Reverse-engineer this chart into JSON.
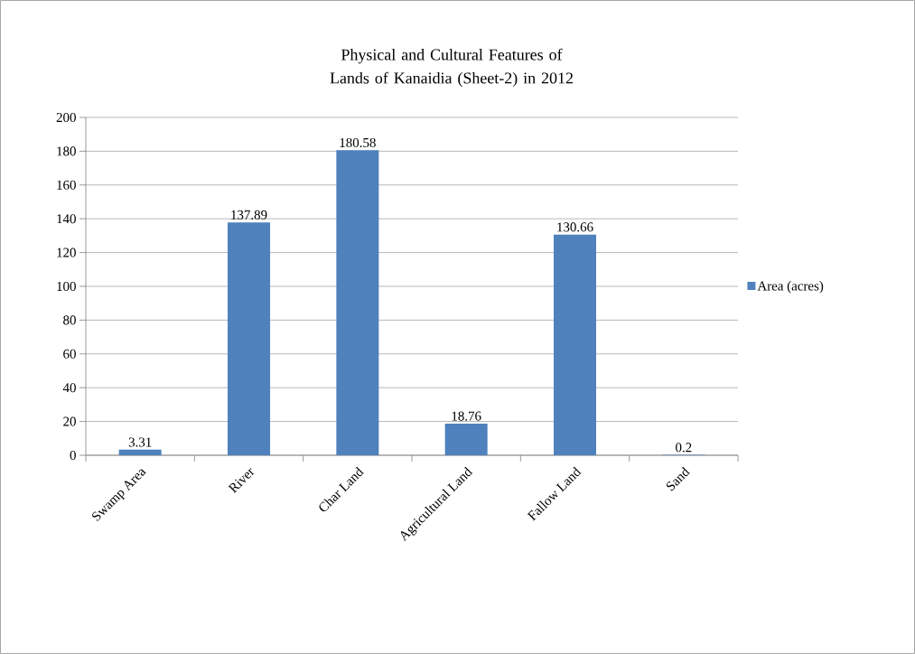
{
  "chart_data": {
    "type": "bar",
    "title": "Physical and Cultural Features of Lands of Kanaidia (Sheet-2) in 2012",
    "categories": [
      "Swamp Area",
      "River",
      "Char Land",
      "Agricultural Land",
      "Fallow Land",
      "Sand"
    ],
    "series": [
      {
        "name": "Area (acres)",
        "color": "#4f81bd",
        "values": [
          3.31,
          137.89,
          180.58,
          18.76,
          130.66,
          0.2
        ]
      }
    ],
    "ylim": [
      0,
      200
    ],
    "yticks": [
      0,
      20,
      40,
      60,
      80,
      100,
      120,
      140,
      160,
      180,
      200
    ],
    "grid": "y",
    "legend": "right",
    "data_labels": true
  }
}
